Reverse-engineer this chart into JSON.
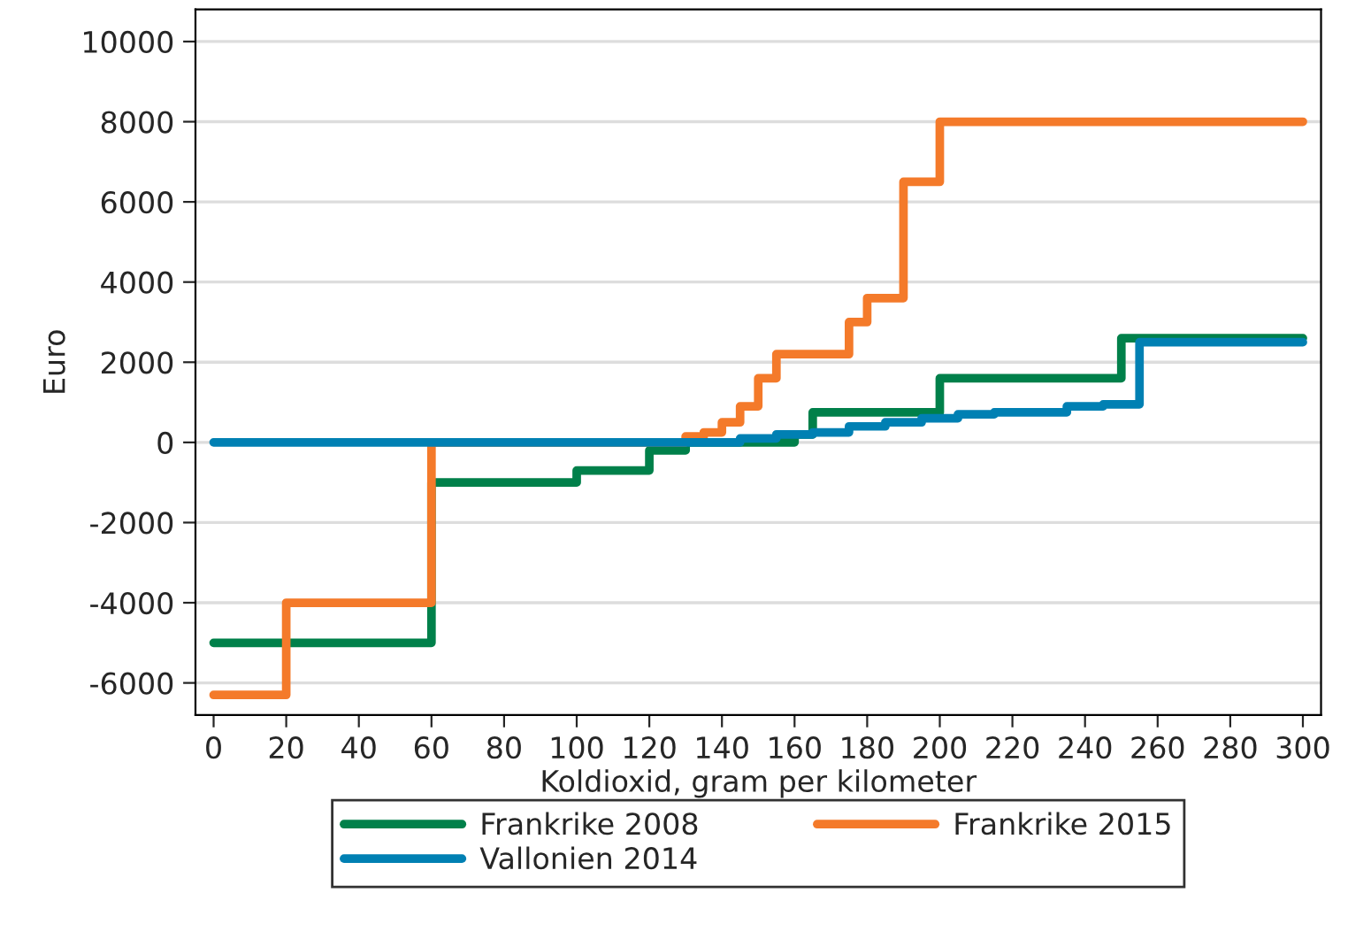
{
  "chart_data": {
    "type": "step",
    "xlabel": "Koldioxid, gram per kilometer",
    "ylabel": "Euro",
    "xlim": [
      -5,
      305
    ],
    "xticks": [
      0,
      20,
      40,
      60,
      80,
      100,
      120,
      140,
      160,
      180,
      200,
      220,
      240,
      260,
      280,
      300
    ],
    "ylim": [
      -6800,
      10800
    ],
    "yticks": [
      -6000,
      -4000,
      -2000,
      0,
      2000,
      4000,
      6000,
      8000,
      10000
    ],
    "grid": "y",
    "legend": "bottom",
    "line_style": "solid",
    "series": [
      {
        "name": "Frankrike 2008",
        "color": "#00804a",
        "x": [
          0,
          60,
          100,
          120,
          130,
          160,
          165,
          200,
          250,
          300
        ],
        "values": [
          -5000,
          -1000,
          -700,
          -200,
          0,
          200,
          750,
          1600,
          2600,
          2600
        ]
      },
      {
        "name": "Frankrike 2015",
        "color": "#f47a2a",
        "x": [
          0,
          20,
          60,
          130,
          135,
          140,
          145,
          150,
          155,
          175,
          180,
          190,
          200,
          300
        ],
        "values": [
          -6300,
          -4000,
          0,
          150,
          250,
          500,
          900,
          1600,
          2200,
          3000,
          3600,
          6500,
          8000,
          8000
        ]
      },
      {
        "name": "Vallonien 2014",
        "color": "#0080b3",
        "x": [
          0,
          145,
          155,
          165,
          175,
          185,
          195,
          205,
          215,
          235,
          245,
          255,
          300
        ],
        "values": [
          0,
          100,
          200,
          250,
          400,
          500,
          600,
          700,
          750,
          900,
          950,
          2500,
          2500
        ]
      }
    ]
  }
}
